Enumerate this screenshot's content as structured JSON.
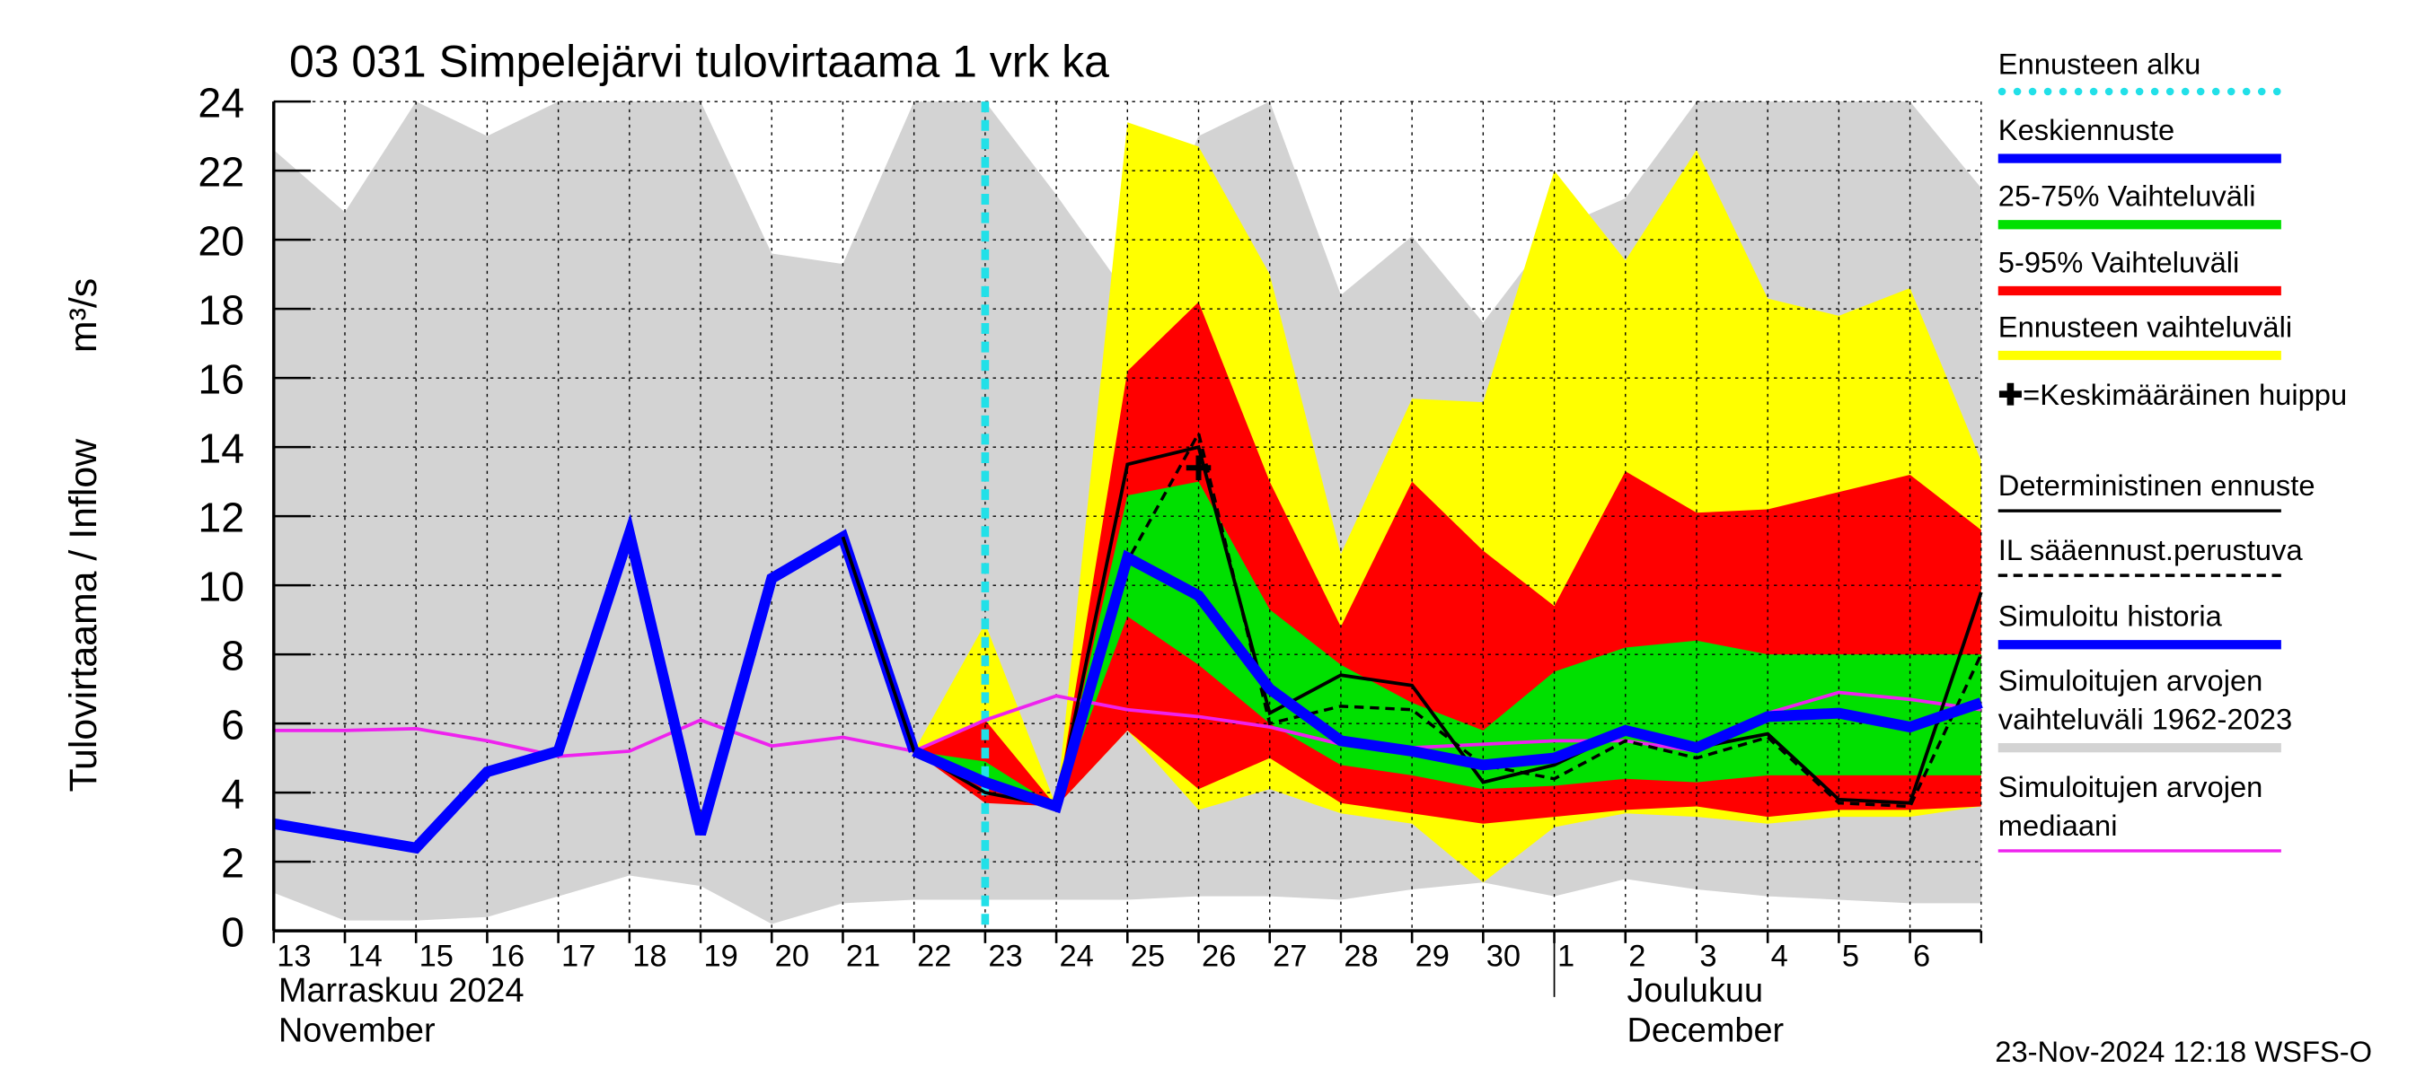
{
  "chart_data": {
    "type": "hydro-forecast",
    "title": "03 031 Simpelejärvi tulovirtaama 1 vrk ka",
    "y_label": "Tulovirtaama / Inflow",
    "y_unit": "m³/s",
    "timestamp": "23-Nov-2024 12:18 WSFS-O",
    "month_labels": [
      [
        "Marraskuu 2024",
        "November"
      ],
      [
        "Joulukuu",
        "December"
      ]
    ],
    "categories": [
      "13",
      "14",
      "15",
      "16",
      "17",
      "18",
      "19",
      "20",
      "21",
      "22",
      "23",
      "24",
      "25",
      "26",
      "27",
      "28",
      "29",
      "30",
      "1",
      "2",
      "3",
      "4",
      "5",
      "6",
      null
    ],
    "ylim": [
      0,
      24
    ],
    "yticks": [
      0,
      2,
      4,
      6,
      8,
      10,
      12,
      14,
      16,
      18,
      20,
      22,
      24
    ],
    "grid": true,
    "forecast_start": {
      "label": "Ennusteen alku",
      "index": 10,
      "color": "#22e0e8"
    },
    "series": [
      {
        "name": "Keskiennuste",
        "style": "line",
        "color": "#0000ff",
        "values": [
          null,
          null,
          null,
          null,
          null,
          null,
          null,
          null,
          null,
          5.2,
          4.3,
          3.6,
          10.8,
          9.7,
          7.0,
          5.5,
          5.2,
          4.8,
          5.0,
          5.8,
          5.3,
          6.2,
          6.3,
          5.9,
          6.6
        ]
      },
      {
        "name": "25-75% Vaihteluväli",
        "style": "band",
        "color": "#00e000",
        "lower": [
          null,
          null,
          null,
          null,
          null,
          null,
          null,
          null,
          null,
          5.2,
          4.2,
          3.6,
          9.1,
          7.7,
          6.0,
          4.8,
          4.5,
          4.1,
          4.2,
          4.4,
          4.3,
          4.5,
          4.5,
          4.5,
          4.5
        ],
        "upper": [
          null,
          null,
          null,
          null,
          null,
          null,
          null,
          null,
          null,
          5.2,
          4.9,
          3.6,
          12.6,
          13.0,
          9.3,
          7.7,
          6.6,
          5.8,
          7.5,
          8.2,
          8.4,
          8.0,
          8.0,
          8.0,
          8.0
        ]
      },
      {
        "name": "5-95% Vaihteluväli",
        "style": "band",
        "color": "#ff0000",
        "lower": [
          null,
          null,
          null,
          null,
          null,
          null,
          null,
          null,
          null,
          5.2,
          3.7,
          3.6,
          5.8,
          4.1,
          5.0,
          3.7,
          3.4,
          3.1,
          3.3,
          3.5,
          3.6,
          3.3,
          3.5,
          3.5,
          3.6
        ],
        "upper": [
          null,
          null,
          null,
          null,
          null,
          null,
          null,
          null,
          null,
          5.2,
          6.1,
          3.6,
          16.2,
          18.2,
          13.0,
          8.8,
          13.0,
          11.0,
          9.4,
          13.3,
          12.1,
          12.2,
          12.7,
          13.2,
          11.6
        ]
      },
      {
        "name": "Ennusteen vaihteluväli",
        "style": "band",
        "color": "#ffff00",
        "lower": [
          null,
          null,
          null,
          null,
          null,
          null,
          null,
          null,
          null,
          5.2,
          3.9,
          3.6,
          5.8,
          3.5,
          4.1,
          3.4,
          3.1,
          1.4,
          3.0,
          3.4,
          3.3,
          3.1,
          3.3,
          3.3,
          3.6
        ],
        "upper": [
          null,
          null,
          null,
          null,
          null,
          null,
          null,
          null,
          null,
          5.2,
          8.9,
          3.6,
          23.4,
          22.7,
          19.0,
          10.9,
          15.4,
          15.3,
          22.0,
          19.4,
          22.6,
          18.3,
          17.8,
          18.6,
          13.6
        ]
      },
      {
        "name": "=Keskimääräinen huippu",
        "style": "marker",
        "color": "#000000",
        "values": [
          null,
          null,
          null,
          null,
          null,
          null,
          null,
          null,
          null,
          null,
          null,
          null,
          null,
          13.4,
          null,
          null,
          null,
          null,
          null,
          null,
          null,
          null,
          null,
          null,
          null
        ]
      },
      {
        "name": "Deterministinen ennuste",
        "style": "line",
        "color": "#000000",
        "values": [
          null,
          null,
          null,
          null,
          null,
          null,
          null,
          null,
          11.4,
          5.2,
          4.0,
          3.6,
          13.5,
          14.0,
          6.3,
          7.4,
          7.1,
          4.3,
          4.8,
          5.8,
          5.3,
          5.7,
          3.8,
          3.7,
          9.8
        ]
      },
      {
        "name": "IL sääennust.perustuva",
        "style": "dashed",
        "color": "#000000",
        "values": [
          null,
          null,
          null,
          null,
          null,
          null,
          null,
          null,
          null,
          5.2,
          4.4,
          3.6,
          10.7,
          14.4,
          6.0,
          6.5,
          6.4,
          4.8,
          4.4,
          5.5,
          5.0,
          5.6,
          3.7,
          3.6,
          8.0
        ]
      },
      {
        "name": "Simuloitu historia",
        "style": "line",
        "color": "#0000ff",
        "values": [
          3.1,
          2.75,
          2.4,
          4.6,
          5.2,
          11.5,
          2.8,
          10.2,
          11.4,
          5.2,
          null,
          null,
          null,
          null,
          null,
          null,
          null,
          null,
          null,
          null,
          null,
          null,
          null,
          null,
          null
        ]
      },
      {
        "name": "Simuloitujen arvojen\nvaihteluväli 1962-2023",
        "style": "band",
        "color": "#d3d3d3",
        "lower": [
          1.1,
          0.3,
          0.3,
          0.4,
          1.0,
          1.6,
          1.3,
          0.2,
          0.8,
          0.9,
          0.9,
          0.9,
          0.9,
          1.0,
          1.0,
          0.9,
          1.2,
          1.4,
          1.0,
          1.5,
          1.2,
          1.0,
          0.9,
          0.8,
          0.8
        ],
        "upper": [
          22.6,
          20.8,
          24,
          23.0,
          24,
          24,
          24,
          19.6,
          19.3,
          24,
          24,
          21.3,
          18.4,
          23.0,
          24,
          18.4,
          20.1,
          17.6,
          20.3,
          21.2,
          24,
          24,
          24,
          24,
          21.5
        ]
      },
      {
        "name": "Simuloitujen arvojen\nmediaani",
        "style": "line",
        "color": "#ee22ee",
        "values": [
          5.8,
          5.8,
          5.85,
          5.5,
          5.05,
          5.2,
          6.1,
          5.35,
          5.6,
          5.2,
          6.1,
          6.8,
          6.4,
          6.2,
          5.9,
          5.4,
          5.3,
          5.4,
          5.5,
          5.5,
          5.2,
          6.3,
          6.9,
          6.7,
          6.4
        ]
      }
    ]
  }
}
